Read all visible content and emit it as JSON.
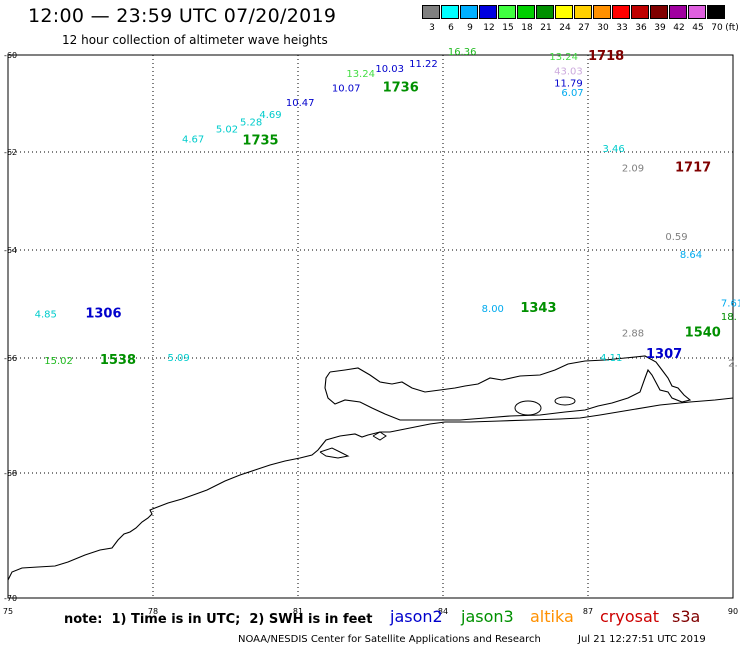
{
  "header": {
    "title": "12:00 — 23:59 UTC 07/20/2019",
    "subtitle": "12 hour collection of altimeter wave heights"
  },
  "colorbar": {
    "unit": "(ft)",
    "bins": [
      {
        "label": "3",
        "color": "#808080"
      },
      {
        "label": "6",
        "color": "#00ffff"
      },
      {
        "label": "9",
        "color": "#00b0ff"
      },
      {
        "label": "12",
        "color": "#0000e0"
      },
      {
        "label": "15",
        "color": "#40ff40"
      },
      {
        "label": "18",
        "color": "#00d000"
      },
      {
        "label": "21",
        "color": "#009000"
      },
      {
        "label": "24",
        "color": "#ffff00"
      },
      {
        "label": "27",
        "color": "#ffd000"
      },
      {
        "label": "30",
        "color": "#ff9000"
      },
      {
        "label": "33",
        "color": "#ff0000"
      },
      {
        "label": "36",
        "color": "#c00000"
      },
      {
        "label": "39",
        "color": "#800000"
      },
      {
        "label": "42",
        "color": "#a000a0"
      },
      {
        "label": "45",
        "color": "#e060e0"
      },
      {
        "label": "70",
        "color": "#000000"
      }
    ]
  },
  "axes": {
    "lon_ticks": [
      "75",
      "78",
      "81",
      "84",
      "87",
      "90"
    ],
    "lat_ticks": [
      "-60",
      "-62",
      "-64",
      "-66",
      "-68",
      "-70"
    ]
  },
  "observations": [
    {
      "text": "16.36",
      "color": "#22bb22",
      "lon": 84.1,
      "lat": -60.0
    },
    {
      "text": "11.22",
      "color": "#0000cc",
      "lon": 83.3,
      "lat": -60.25
    },
    {
      "text": "10.03",
      "color": "#0000cc",
      "lon": 82.6,
      "lat": -60.35
    },
    {
      "text": "13.24",
      "color": "#44dd44",
      "lon": 82.0,
      "lat": -60.45
    },
    {
      "text": "10.07",
      "color": "#0000cc",
      "lon": 81.7,
      "lat": -60.75
    },
    {
      "text": "10.47",
      "color": "#0000cc",
      "lon": 80.75,
      "lat": -61.05
    },
    {
      "text": "4.69",
      "color": "#00cccc",
      "lon": 80.2,
      "lat": -61.3
    },
    {
      "text": "5.28",
      "color": "#00cccc",
      "lon": 79.8,
      "lat": -61.45
    },
    {
      "text": "5.02",
      "color": "#00cccc",
      "lon": 79.3,
      "lat": -61.6
    },
    {
      "text": "4.67",
      "color": "#00cccc",
      "lon": 78.6,
      "lat": -61.8
    },
    {
      "text": "13.24",
      "color": "#44dd44",
      "lon": 86.2,
      "lat": -60.1
    },
    {
      "text": "43.03",
      "color": "#ccaadd",
      "lon": 86.3,
      "lat": -60.4
    },
    {
      "text": "11.79",
      "color": "#0000cc",
      "lon": 86.3,
      "lat": -60.65
    },
    {
      "text": "6.07",
      "color": "#00aaee",
      "lon": 86.45,
      "lat": -60.85
    },
    {
      "text": "3.46",
      "color": "#00cccc",
      "lon": 87.3,
      "lat": -62.0
    },
    {
      "text": "2.09",
      "color": "#808080",
      "lon": 87.7,
      "lat": -62.4
    },
    {
      "text": "0.59",
      "color": "#808080",
      "lon": 88.6,
      "lat": -63.8
    },
    {
      "text": "8.64",
      "color": "#00aaee",
      "lon": 88.9,
      "lat": -64.15
    },
    {
      "text": "7.61",
      "color": "#00aaee",
      "lon": 89.75,
      "lat": -65.05
    },
    {
      "text": "18.",
      "color": "#009000",
      "lon": 89.75,
      "lat": -65.3
    },
    {
      "text": "4.85",
      "color": "#00cccc",
      "lon": 75.55,
      "lat": -65.25
    },
    {
      "text": "15.02",
      "color": "#22bb22",
      "lon": 75.75,
      "lat": -66.1
    },
    {
      "text": "5.09",
      "color": "#00cccc",
      "lon": 78.3,
      "lat": -66.05
    },
    {
      "text": "8.00",
      "color": "#00aaee",
      "lon": 84.8,
      "lat": -65.15
    },
    {
      "text": "2.88",
      "color": "#808080",
      "lon": 87.7,
      "lat": -65.6
    },
    {
      "text": "4.11",
      "color": "#00cccc",
      "lon": 87.25,
      "lat": -66.05
    },
    {
      "text": "2.",
      "color": "#808080",
      "lon": 89.9,
      "lat": -66.15
    }
  ],
  "pass_times": [
    {
      "text": "1718",
      "color": "#800000",
      "lon": 87.0,
      "lat": -60.1
    },
    {
      "text": "1736",
      "color": "#009000",
      "lon": 82.75,
      "lat": -60.75
    },
    {
      "text": "1735",
      "color": "#009000",
      "lon": 79.85,
      "lat": -61.85
    },
    {
      "text": "1717",
      "color": "#800000",
      "lon": 88.8,
      "lat": -62.4
    },
    {
      "text": "1306",
      "color": "#0000cc",
      "lon": 76.6,
      "lat": -65.25
    },
    {
      "text": "1538",
      "color": "#009000",
      "lon": 76.9,
      "lat": -66.1
    },
    {
      "text": "1343",
      "color": "#009000",
      "lon": 85.6,
      "lat": -65.15
    },
    {
      "text": "1540",
      "color": "#009000",
      "lon": 89.0,
      "lat": -65.6
    },
    {
      "text": "1307",
      "color": "#0000cc",
      "lon": 88.2,
      "lat": -66.0
    }
  ],
  "footer": {
    "note": "note:  1) Time is in UTC;  2) SWH is in feet",
    "satellites": [
      {
        "name": "jason2",
        "color": "#0000cc"
      },
      {
        "name": "jason3",
        "color": "#009000"
      },
      {
        "name": "altika",
        "color": "#ff9000"
      },
      {
        "name": "cryosat",
        "color": "#cc0000"
      },
      {
        "name": "s3a",
        "color": "#800000"
      }
    ],
    "credit": "NOAA/NESDIS Center for Satellite Applications and Research",
    "timestamp": "Jul 21 12:27:51 UTC 2019"
  }
}
